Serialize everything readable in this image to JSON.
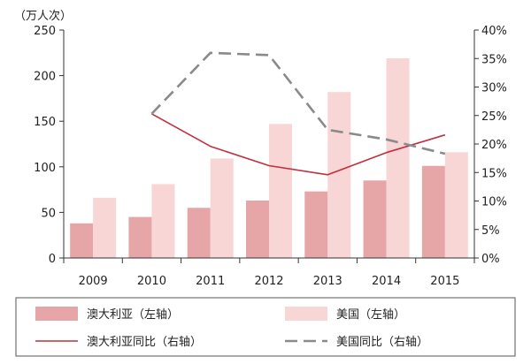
{
  "chart_data": {
    "type": "bar",
    "title": "",
    "unit_label": "（万人次）",
    "categories": [
      "2009",
      "2010",
      "2011",
      "2012",
      "2013",
      "2014",
      "2015"
    ],
    "y_left": {
      "ylim": [
        0,
        250
      ],
      "ticks": [
        "0",
        "50",
        "100",
        "150",
        "200",
        "250"
      ]
    },
    "y_right": {
      "ylim": [
        0,
        40
      ],
      "ticks": [
        "0%",
        "5%",
        "10%",
        "15%",
        "20%",
        "25%",
        "30%",
        "35%",
        "40%"
      ]
    },
    "grid": false,
    "legend_position": "bottom",
    "series": [
      {
        "name": "澳大利亚（左轴）",
        "type": "bar",
        "axis": "left",
        "color": "#e6a5a7",
        "values": [
          38,
          45,
          55,
          63,
          73,
          85,
          101
        ]
      },
      {
        "name": "美国（左轴）",
        "type": "bar",
        "axis": "left",
        "color": "#f8d6d6",
        "values": [
          66,
          81,
          109,
          147,
          182,
          219,
          116
        ]
      },
      {
        "name": "澳大利亚同比（右轴）",
        "type": "line",
        "axis": "right",
        "color": "#c0303f",
        "dash": "solid",
        "values": [
          null,
          25.3,
          19.6,
          16.2,
          14.6,
          18.5,
          21.6
        ]
      },
      {
        "name": "美国同比（右轴）",
        "type": "line",
        "axis": "right",
        "color": "#8a8a8a",
        "dash": "dashed",
        "values": [
          null,
          25.3,
          36.0,
          35.6,
          22.5,
          20.8,
          18.3
        ]
      }
    ]
  }
}
